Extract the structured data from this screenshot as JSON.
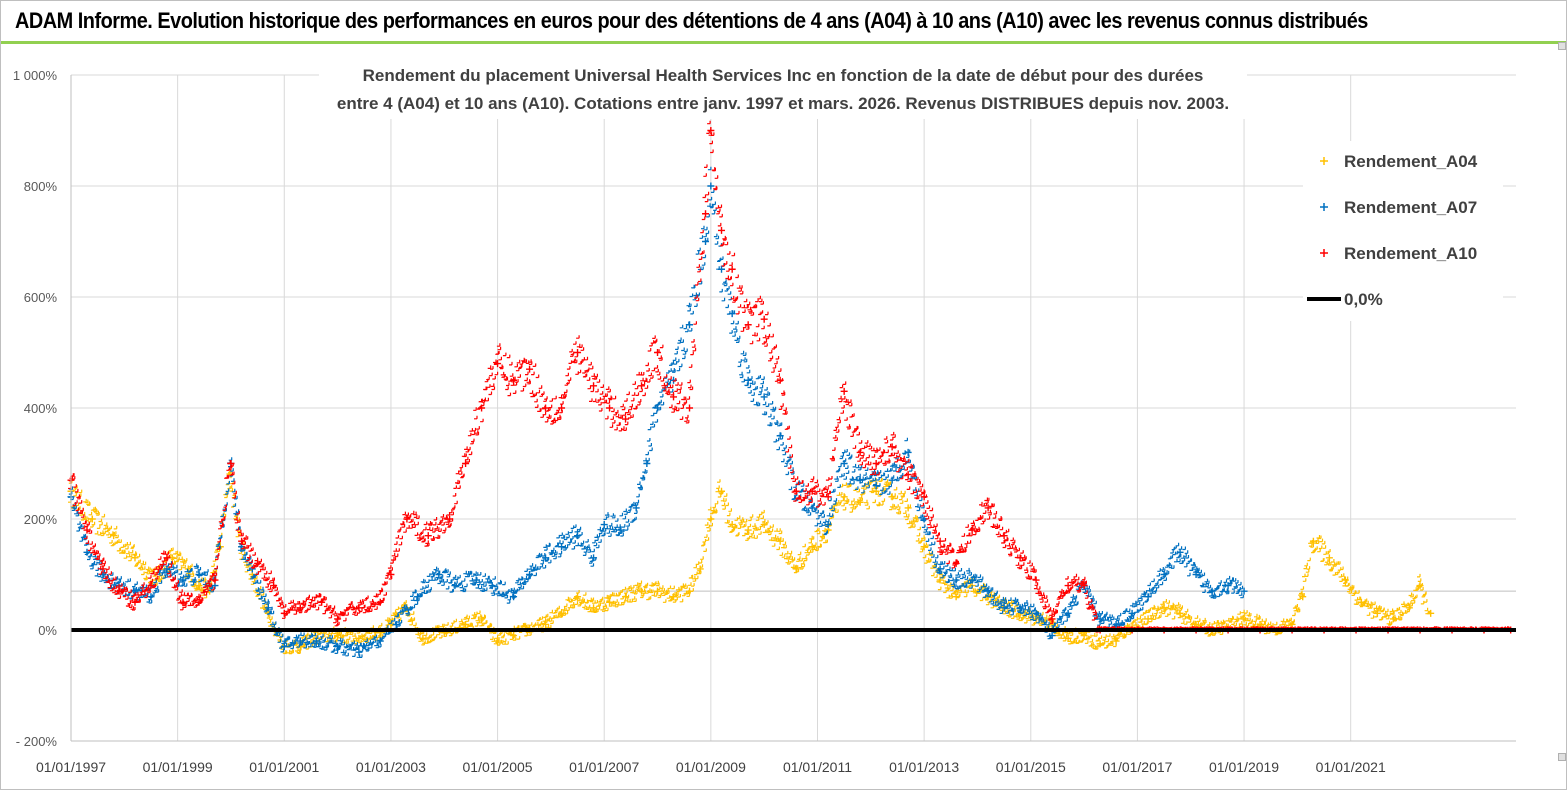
{
  "banner": {
    "title": "ADAM Informe. Evolution historique des performances en euros pour des détentions de 4 ans (A04) à 10 ans (A10) avec les revenus connus distribués"
  },
  "chart_data": {
    "type": "scatter",
    "title_lines": [
      "Rendement du placement Universal Health Services  Inc en fonction de la date de début pour des durées",
      "entre 4 (A04) et 10 ans (A10).  Cotations entre janv. 1997 et mars. 2026.  Revenus DISTRIBUES depuis nov. 2003."
    ],
    "xlabel": "",
    "ylabel": "",
    "x_unit": "year",
    "xlim": [
      1997.0,
      2024.1
    ],
    "ylim": [
      -200,
      1000
    ],
    "y_ticks": [
      {
        "value": 1000,
        "label": "1 000%"
      },
      {
        "value": 800,
        "label": "800%"
      },
      {
        "value": 600,
        "label": "600%"
      },
      {
        "value": 400,
        "label": "400%"
      },
      {
        "value": 200,
        "label": "200%"
      },
      {
        "value": 0,
        "label": "0%"
      },
      {
        "value": -200,
        "label": "- 200%"
      }
    ],
    "x_ticks": [
      {
        "value": 1997,
        "label": "01/01/1997"
      },
      {
        "value": 1999,
        "label": "01/01/1999"
      },
      {
        "value": 2001,
        "label": "01/01/2001"
      },
      {
        "value": 2003,
        "label": "01/01/2003"
      },
      {
        "value": 2005,
        "label": "01/01/2005"
      },
      {
        "value": 2007,
        "label": "01/01/2007"
      },
      {
        "value": 2009,
        "label": "01/01/2009"
      },
      {
        "value": 2011,
        "label": "01/01/2011"
      },
      {
        "value": 2013,
        "label": "01/01/2013"
      },
      {
        "value": 2015,
        "label": "01/01/2015"
      },
      {
        "value": 2017,
        "label": "01/01/2017"
      },
      {
        "value": 2019,
        "label": "01/01/2019"
      },
      {
        "value": 2021,
        "label": "01/01/2021"
      }
    ],
    "extra_gridlines": [
      70
    ],
    "grid": true,
    "legend_position": "top-right",
    "series": [
      {
        "name": "Rendement_A04",
        "color": "#ffc000",
        "marker": "+",
        "points": [
          [
            1997.0,
            250
          ],
          [
            1997.4,
            200
          ],
          [
            1997.8,
            170
          ],
          [
            1998.2,
            130
          ],
          [
            1998.6,
            90
          ],
          [
            1998.9,
            130
          ],
          [
            1999.2,
            110
          ],
          [
            1999.4,
            80
          ],
          [
            1999.6,
            70
          ],
          [
            1999.8,
            150
          ],
          [
            2000.0,
            280
          ],
          [
            2000.2,
            150
          ],
          [
            2000.4,
            100
          ],
          [
            2000.7,
            30
          ],
          [
            2001.0,
            -30
          ],
          [
            2001.3,
            -30
          ],
          [
            2001.6,
            -15
          ],
          [
            2002.0,
            -10
          ],
          [
            2002.4,
            -15
          ],
          [
            2002.8,
            -5
          ],
          [
            2003.0,
            10
          ],
          [
            2003.3,
            40
          ],
          [
            2003.6,
            -15
          ],
          [
            2004.0,
            -5
          ],
          [
            2004.4,
            10
          ],
          [
            2004.7,
            20
          ],
          [
            2005.0,
            -20
          ],
          [
            2005.3,
            -10
          ],
          [
            2005.6,
            0
          ],
          [
            2005.9,
            10
          ],
          [
            2006.2,
            30
          ],
          [
            2006.5,
            60
          ],
          [
            2006.8,
            40
          ],
          [
            2007.1,
            50
          ],
          [
            2007.4,
            60
          ],
          [
            2007.7,
            70
          ],
          [
            2008.0,
            70
          ],
          [
            2008.3,
            60
          ],
          [
            2008.6,
            70
          ],
          [
            2008.8,
            110
          ],
          [
            2009.0,
            200
          ],
          [
            2009.2,
            250
          ],
          [
            2009.4,
            190
          ],
          [
            2009.7,
            180
          ],
          [
            2010.0,
            190
          ],
          [
            2010.3,
            160
          ],
          [
            2010.6,
            110
          ],
          [
            2010.9,
            150
          ],
          [
            2011.2,
            180
          ],
          [
            2011.5,
            240
          ],
          [
            2011.8,
            230
          ],
          [
            2012.1,
            250
          ],
          [
            2012.4,
            240
          ],
          [
            2012.7,
            220
          ],
          [
            2013.0,
            150
          ],
          [
            2013.3,
            90
          ],
          [
            2013.6,
            60
          ],
          [
            2013.9,
            80
          ],
          [
            2014.2,
            60
          ],
          [
            2014.5,
            40
          ],
          [
            2014.8,
            30
          ],
          [
            2015.1,
            20
          ],
          [
            2015.4,
            10
          ],
          [
            2015.7,
            -15
          ],
          [
            2016.0,
            -10
          ],
          [
            2016.3,
            -25
          ],
          [
            2016.6,
            -20
          ],
          [
            2016.9,
            5
          ],
          [
            2017.2,
            20
          ],
          [
            2017.5,
            40
          ],
          [
            2017.8,
            30
          ],
          [
            2018.1,
            10
          ],
          [
            2018.4,
            0
          ],
          [
            2018.7,
            5
          ],
          [
            2019.0,
            20
          ],
          [
            2019.3,
            10
          ],
          [
            2019.6,
            0
          ],
          [
            2019.9,
            10
          ],
          [
            2020.1,
            60
          ],
          [
            2020.3,
            160
          ],
          [
            2020.6,
            130
          ],
          [
            2020.9,
            90
          ],
          [
            2021.2,
            50
          ],
          [
            2021.5,
            30
          ],
          [
            2021.8,
            20
          ],
          [
            2022.1,
            40
          ],
          [
            2022.3,
            80
          ],
          [
            2022.5,
            30
          ]
        ]
      },
      {
        "name": "Rendement_A07",
        "color": "#0070c0",
        "marker": "+",
        "points": [
          [
            1997.0,
            240
          ],
          [
            1997.3,
            140
          ],
          [
            1997.6,
            100
          ],
          [
            1997.9,
            80
          ],
          [
            1998.2,
            70
          ],
          [
            1998.5,
            60
          ],
          [
            1998.8,
            110
          ],
          [
            1999.1,
            90
          ],
          [
            1999.4,
            100
          ],
          [
            1999.7,
            80
          ],
          [
            2000.0,
            300
          ],
          [
            2000.2,
            150
          ],
          [
            2000.4,
            110
          ],
          [
            2000.7,
            40
          ],
          [
            2001.0,
            -30
          ],
          [
            2001.3,
            -20
          ],
          [
            2001.6,
            -20
          ],
          [
            2002.0,
            -30
          ],
          [
            2002.4,
            -40
          ],
          [
            2002.8,
            -20
          ],
          [
            2003.1,
            10
          ],
          [
            2003.5,
            60
          ],
          [
            2003.9,
            100
          ],
          [
            2004.2,
            80
          ],
          [
            2004.6,
            90
          ],
          [
            2004.9,
            80
          ],
          [
            2005.3,
            60
          ],
          [
            2005.6,
            100
          ],
          [
            2005.9,
            130
          ],
          [
            2006.2,
            150
          ],
          [
            2006.5,
            170
          ],
          [
            2006.8,
            130
          ],
          [
            2007.0,
            190
          ],
          [
            2007.3,
            180
          ],
          [
            2007.6,
            220
          ],
          [
            2007.8,
            300
          ],
          [
            2008.0,
            400
          ],
          [
            2008.3,
            450
          ],
          [
            2008.6,
            550
          ],
          [
            2008.9,
            700
          ],
          [
            2009.0,
            800
          ],
          [
            2009.2,
            650
          ],
          [
            2009.4,
            570
          ],
          [
            2009.7,
            450
          ],
          [
            2010.0,
            420
          ],
          [
            2010.3,
            350
          ],
          [
            2010.6,
            250
          ],
          [
            2010.9,
            220
          ],
          [
            2011.2,
            190
          ],
          [
            2011.5,
            300
          ],
          [
            2011.8,
            270
          ],
          [
            2012.1,
            260
          ],
          [
            2012.4,
            270
          ],
          [
            2012.7,
            320
          ],
          [
            2013.0,
            200
          ],
          [
            2013.3,
            110
          ],
          [
            2013.6,
            90
          ],
          [
            2013.9,
            90
          ],
          [
            2014.2,
            70
          ],
          [
            2014.5,
            40
          ],
          [
            2014.8,
            40
          ],
          [
            2015.1,
            30
          ],
          [
            2015.4,
            -10
          ],
          [
            2015.7,
            30
          ],
          [
            2016.0,
            80
          ],
          [
            2016.3,
            20
          ],
          [
            2016.6,
            10
          ],
          [
            2016.9,
            30
          ],
          [
            2017.2,
            60
          ],
          [
            2017.5,
            100
          ],
          [
            2017.8,
            140
          ],
          [
            2018.1,
            100
          ],
          [
            2018.4,
            70
          ],
          [
            2018.7,
            80
          ],
          [
            2019.0,
            70
          ]
        ]
      },
      {
        "name": "Rendement_A10",
        "color": "#ff0000",
        "marker": "+",
        "points": [
          [
            1997.0,
            270
          ],
          [
            1997.3,
            180
          ],
          [
            1997.6,
            110
          ],
          [
            1997.9,
            70
          ],
          [
            1998.2,
            50
          ],
          [
            1998.5,
            80
          ],
          [
            1998.8,
            130
          ],
          [
            1999.1,
            50
          ],
          [
            1999.4,
            50
          ],
          [
            1999.7,
            90
          ],
          [
            2000.0,
            300
          ],
          [
            2000.2,
            160
          ],
          [
            2000.5,
            120
          ],
          [
            2000.8,
            80
          ],
          [
            2001.0,
            30
          ],
          [
            2001.3,
            40
          ],
          [
            2001.7,
            50
          ],
          [
            2002.0,
            20
          ],
          [
            2002.4,
            40
          ],
          [
            2002.8,
            50
          ],
          [
            2003.0,
            100
          ],
          [
            2003.3,
            200
          ],
          [
            2003.7,
            170
          ],
          [
            2004.1,
            200
          ],
          [
            2004.4,
            300
          ],
          [
            2004.7,
            400
          ],
          [
            2005.0,
            480
          ],
          [
            2005.3,
            450
          ],
          [
            2005.6,
            470
          ],
          [
            2005.9,
            400
          ],
          [
            2006.2,
            400
          ],
          [
            2006.5,
            500
          ],
          [
            2006.8,
            440
          ],
          [
            2007.1,
            400
          ],
          [
            2007.4,
            380
          ],
          [
            2007.7,
            440
          ],
          [
            2008.0,
            500
          ],
          [
            2008.3,
            420
          ],
          [
            2008.6,
            400
          ],
          [
            2008.9,
            750
          ],
          [
            2009.0,
            900
          ],
          [
            2009.2,
            720
          ],
          [
            2009.4,
            650
          ],
          [
            2009.7,
            550
          ],
          [
            2010.0,
            560
          ],
          [
            2010.3,
            450
          ],
          [
            2010.6,
            250
          ],
          [
            2010.9,
            250
          ],
          [
            2011.2,
            240
          ],
          [
            2011.5,
            430
          ],
          [
            2011.8,
            320
          ],
          [
            2012.1,
            300
          ],
          [
            2012.4,
            330
          ],
          [
            2012.7,
            280
          ],
          [
            2013.0,
            240
          ],
          [
            2013.3,
            160
          ],
          [
            2013.6,
            120
          ],
          [
            2013.9,
            180
          ],
          [
            2014.2,
            220
          ],
          [
            2014.5,
            170
          ],
          [
            2014.8,
            130
          ],
          [
            2015.1,
            90
          ],
          [
            2015.4,
            20
          ],
          [
            2015.7,
            80
          ],
          [
            2016.0,
            80
          ],
          [
            2016.3,
            0
          ],
          [
            2016.9,
            0
          ],
          [
            2017.5,
            0
          ],
          [
            2018.1,
            0
          ],
          [
            2018.7,
            0
          ],
          [
            2019.3,
            0
          ],
          [
            2019.9,
            0
          ],
          [
            2020.5,
            0
          ],
          [
            2021.1,
            0
          ],
          [
            2021.7,
            0
          ],
          [
            2022.3,
            0
          ],
          [
            2022.9,
            0
          ],
          [
            2023.5,
            0
          ],
          [
            2024.0,
            0
          ]
        ]
      },
      {
        "name": "0,0%",
        "color": "#000000",
        "marker": "line",
        "points": [
          [
            1997.0,
            0
          ],
          [
            2024.1,
            0
          ]
        ]
      }
    ]
  }
}
